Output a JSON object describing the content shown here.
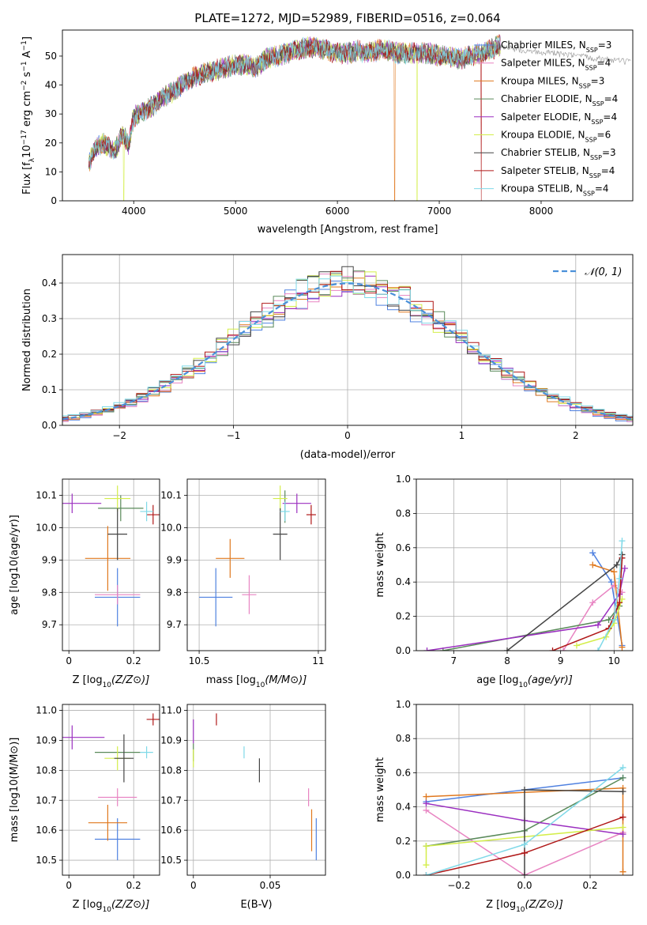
{
  "figure": {
    "title": "PLATE=1272, MJD=52989, FIBERID=0516, z=0.064"
  },
  "legend_entries": [
    {
      "label": "Chabrier MILES, N",
      "sub": "SSP",
      "suffix": "=3",
      "color": "#4f81e0"
    },
    {
      "label": "Salpeter MILES, N",
      "sub": "SSP",
      "suffix": "=4",
      "color": "#e884c2"
    },
    {
      "label": "Kroupa MILES, N",
      "sub": "SSP",
      "suffix": "=3",
      "color": "#e0781e"
    },
    {
      "label": "Chabrier ELODIE, N",
      "sub": "SSP",
      "suffix": "=4",
      "color": "#5a8a5a"
    },
    {
      "label": "Salpeter ELODIE, N",
      "sub": "SSP",
      "suffix": "=4",
      "color": "#9b2fc0"
    },
    {
      "label": "Kroupa ELODIE, N",
      "sub": "SSP",
      "suffix": "=6",
      "color": "#d4ee4a"
    },
    {
      "label": "Chabrier STELIB, N",
      "sub": "SSP",
      "suffix": "=3",
      "color": "#444444"
    },
    {
      "label": "Salpeter STELIB, N",
      "sub": "SSP",
      "suffix": "=4",
      "color": "#b01818"
    },
    {
      "label": "Kroupa STELIB, N",
      "sub": "SSP",
      "suffix": "=4",
      "color": "#7fd9e8"
    }
  ],
  "chart_data": [
    {
      "id": "spectrum",
      "type": "line",
      "xlabel": "wavelength [Angstrom, rest frame]",
      "ylabel": "Flux [f",
      "ylabel_parts": [
        "Flux [f",
        "λ",
        "10",
        "−17",
        " erg cm",
        "−2",
        " s",
        "−1",
        " A",
        "−1",
        "]"
      ],
      "xlim": [
        3300,
        8900
      ],
      "ylim": [
        0,
        59
      ],
      "xticks": [
        4000,
        5000,
        6000,
        7000,
        8000
      ],
      "yticks": [
        0,
        10,
        20,
        30,
        40,
        50
      ],
      "x": [
        3560,
        3620,
        3700,
        3800,
        3900,
        3950,
        4000,
        4050,
        4100,
        4200,
        4300,
        4400,
        4500,
        4600,
        4700,
        4800,
        4900,
        5000,
        5100,
        5200,
        5300,
        5400,
        5500,
        5600,
        5700,
        5800,
        5900,
        6000,
        6100,
        6200,
        6300,
        6400,
        6500,
        6600,
        6700,
        6800,
        6900,
        7000,
        7100,
        7200,
        7300,
        7400,
        7500,
        7600
      ],
      "values": [
        13,
        18,
        20,
        17,
        23,
        19,
        29,
        30,
        31,
        33,
        36,
        38,
        41,
        43,
        44,
        45,
        46,
        47,
        47,
        46,
        49,
        50,
        51,
        52,
        53,
        53,
        52,
        51,
        51,
        52,
        51,
        52,
        52,
        51,
        51,
        51,
        51,
        50,
        50,
        49,
        50,
        51,
        52,
        54
      ]
    },
    {
      "id": "residuals",
      "type": "bar",
      "xlabel": "(data-model)/error",
      "ylabel": "Normed distribution",
      "xlim": [
        -2.5,
        2.5
      ],
      "ylim": [
        0,
        0.48
      ],
      "xticks": [
        -2,
        -1,
        0,
        1,
        2
      ],
      "yticks": [
        0.0,
        0.1,
        0.2,
        0.3,
        0.4
      ],
      "legend": "𝒩(0, 1)",
      "bin_width": 0.1
    },
    {
      "id": "age_vs_Z",
      "type": "scatter",
      "xlabel": "Z [log",
      "xlabel_full": "Z [log10(Z/Z⊙)]",
      "ylabel": "age  [log10(age/yr)]",
      "xlim": [
        -0.02,
        0.28
      ],
      "ylim": [
        9.62,
        10.15
      ],
      "xticks": [
        0.0,
        0.2
      ],
      "yticks": [
        9.7,
        9.8,
        9.9,
        10.0,
        10.1
      ],
      "points": [
        {
          "x": 0.15,
          "y": 9.785,
          "xerr": 0.07,
          "yerr": 0.09,
          "series": 0
        },
        {
          "x": 0.15,
          "y": 9.793,
          "xerr": 0.07,
          "yerr": 0.03,
          "series": 1
        },
        {
          "x": 0.12,
          "y": 9.905,
          "xerr": 0.07,
          "yerr": 0.1,
          "series": 2
        },
        {
          "x": 0.16,
          "y": 10.06,
          "xerr": 0.07,
          "yerr": 0.04,
          "series": 3
        },
        {
          "x": 0.01,
          "y": 10.075,
          "xerr": 0.09,
          "yerr": 0.03,
          "series": 4
        },
        {
          "x": 0.15,
          "y": 10.09,
          "xerr": 0.04,
          "yerr": 0.04,
          "series": 5
        },
        {
          "x": 0.15,
          "y": 9.98,
          "xerr": 0.03,
          "yerr": 0.08,
          "series": 6
        },
        {
          "x": 0.26,
          "y": 10.04,
          "xerr": 0.02,
          "yerr": 0.03,
          "series": 7
        },
        {
          "x": 0.24,
          "y": 10.05,
          "xerr": 0.02,
          "yerr": 0.03,
          "series": 8
        }
      ]
    },
    {
      "id": "age_vs_mass",
      "type": "scatter",
      "xlabel": "mass [log10(M/M⊙)]",
      "ylabel": "",
      "xlim": [
        10.45,
        11.03
      ],
      "ylim": [
        9.62,
        10.15
      ],
      "xticks": [
        10.5,
        11.0
      ],
      "yticks": [
        9.7,
        9.8,
        9.9,
        10.0,
        10.1
      ],
      "points": [
        {
          "x": 10.57,
          "y": 9.785,
          "xerr": 0.07,
          "yerr": 0.09,
          "series": 0
        },
        {
          "x": 10.71,
          "y": 9.793,
          "xerr": 0.03,
          "yerr": 0.06,
          "series": 1
        },
        {
          "x": 10.63,
          "y": 9.905,
          "xerr": 0.06,
          "yerr": 0.06,
          "series": 2
        },
        {
          "x": 10.86,
          "y": 10.065,
          "xerr": 0.0,
          "yerr": 0.05,
          "series": 3
        },
        {
          "x": 10.91,
          "y": 10.075,
          "xerr": 0.06,
          "yerr": 0.03,
          "series": 4
        },
        {
          "x": 10.84,
          "y": 10.09,
          "xerr": 0.03,
          "yerr": 0.04,
          "series": 5
        },
        {
          "x": 10.84,
          "y": 9.98,
          "xerr": 0.03,
          "yerr": 0.08,
          "series": 6
        },
        {
          "x": 10.97,
          "y": 10.04,
          "xerr": 0.02,
          "yerr": 0.03,
          "series": 7
        },
        {
          "x": 10.86,
          "y": 10.05,
          "xerr": 0.02,
          "yerr": 0.03,
          "series": 8
        }
      ]
    },
    {
      "id": "mass_weight_vs_age",
      "type": "line",
      "xlabel": "age  [log10(age/yr)]",
      "ylabel": "mass weight",
      "xlim": [
        6.3,
        10.35
      ],
      "ylim": [
        0,
        1.0
      ],
      "xticks": [
        7,
        8,
        9,
        10
      ],
      "yticks": [
        0.0,
        0.2,
        0.4,
        0.6,
        0.8,
        1.0
      ],
      "series": [
        {
          "name": "",
          "x": [
            9.6,
            9.95,
            10.15
          ],
          "y": [
            0.57,
            0.4,
            0.03
          ],
          "color": "#4f81e0"
        },
        {
          "name": "",
          "x": [
            9.05,
            9.6,
            10.0,
            10.15
          ],
          "y": [
            0.0,
            0.28,
            0.38,
            0.34
          ],
          "color": "#e884c2"
        },
        {
          "name": "",
          "x": [
            9.6,
            10.0,
            10.15
          ],
          "y": [
            0.5,
            0.46,
            0.02
          ],
          "color": "#e0781e"
        },
        {
          "name": "",
          "x": [
            6.8,
            9.9,
            10.1,
            10.15
          ],
          "y": [
            0.0,
            0.18,
            0.26,
            0.56
          ],
          "color": "#5a8a5a"
        },
        {
          "name": "",
          "x": [
            6.5,
            9.7,
            10.1,
            10.2
          ],
          "y": [
            0.0,
            0.15,
            0.33,
            0.48
          ],
          "color": "#9b2fc0"
        },
        {
          "name": "",
          "x": [
            9.3,
            9.85,
            10.0,
            10.15
          ],
          "y": [
            0.03,
            0.08,
            0.16,
            0.3
          ],
          "color": "#d4ee4a"
        },
        {
          "name": "",
          "x": [
            8.0,
            10.05,
            10.15
          ],
          "y": [
            0.0,
            0.5,
            0.56
          ],
          "color": "#444444"
        },
        {
          "name": "",
          "x": [
            8.85,
            9.9,
            10.1,
            10.15
          ],
          "y": [
            0.0,
            0.13,
            0.28,
            0.54
          ],
          "color": "#b01818"
        },
        {
          "name": "",
          "x": [
            9.7,
            10.0,
            10.1,
            10.15
          ],
          "y": [
            0.0,
            0.18,
            0.42,
            0.64
          ],
          "color": "#7fd9e8"
        }
      ]
    },
    {
      "id": "mass_vs_Z",
      "type": "scatter",
      "xlabel": "Z [log10(Z/Z⊙)]",
      "ylabel": "mass [log10(M/M⊙)]",
      "xlim": [
        -0.02,
        0.28
      ],
      "ylim": [
        10.45,
        11.02
      ],
      "xticks": [
        0.0,
        0.2
      ],
      "yticks": [
        10.5,
        10.6,
        10.7,
        10.8,
        10.9,
        11.0
      ],
      "points": [
        {
          "x": 0.15,
          "y": 10.57,
          "xerr": 0.07,
          "yerr": 0.07,
          "series": 0
        },
        {
          "x": 0.15,
          "y": 10.71,
          "xerr": 0.06,
          "yerr": 0.03,
          "series": 1
        },
        {
          "x": 0.12,
          "y": 10.625,
          "xerr": 0.06,
          "yerr": 0.06,
          "series": 2
        },
        {
          "x": 0.15,
          "y": 10.86,
          "xerr": 0.07,
          "yerr": 0.0,
          "series": 3
        },
        {
          "x": 0.01,
          "y": 10.91,
          "xerr": 0.1,
          "yerr": 0.04,
          "series": 4
        },
        {
          "x": 0.15,
          "y": 10.84,
          "xerr": 0.04,
          "yerr": 0.04,
          "series": 5
        },
        {
          "x": 0.17,
          "y": 10.84,
          "xerr": 0.03,
          "yerr": 0.08,
          "series": 6
        },
        {
          "x": 0.26,
          "y": 10.97,
          "xerr": 0.02,
          "yerr": 0.02,
          "series": 7
        },
        {
          "x": 0.24,
          "y": 10.86,
          "xerr": 0.02,
          "yerr": 0.02,
          "series": 8
        }
      ]
    },
    {
      "id": "mass_vs_EBV",
      "type": "scatter",
      "xlabel": "E(B-V)",
      "ylabel": "",
      "xlim": [
        -0.004,
        0.086
      ],
      "ylim": [
        10.45,
        11.02
      ],
      "xticks": [
        0.0,
        0.05
      ],
      "yticks": [
        10.5,
        10.6,
        10.7,
        10.8,
        10.9,
        11.0
      ],
      "points": [
        {
          "x": 0.08,
          "y": 10.57,
          "xerr": 0,
          "yerr": 0.07,
          "series": 0
        },
        {
          "x": 0.075,
          "y": 10.71,
          "xerr": 0,
          "yerr": 0.03,
          "series": 1
        },
        {
          "x": 0.077,
          "y": 10.6,
          "xerr": 0,
          "yerr": 0.07,
          "series": 2
        },
        {
          "x": 0.0,
          "y": 10.86,
          "xerr": 0,
          "yerr": 0.03,
          "series": 3
        },
        {
          "x": 0.0,
          "y": 10.93,
          "xerr": 0,
          "yerr": 0.04,
          "series": 4
        },
        {
          "x": 0.0,
          "y": 10.84,
          "xerr": 0,
          "yerr": 0.03,
          "series": 5
        },
        {
          "x": 0.043,
          "y": 10.8,
          "xerr": 0,
          "yerr": 0.04,
          "series": 6
        },
        {
          "x": 0.015,
          "y": 10.97,
          "xerr": 0,
          "yerr": 0.02,
          "series": 7
        },
        {
          "x": 0.033,
          "y": 10.86,
          "xerr": 0,
          "yerr": 0.02,
          "series": 8
        }
      ]
    },
    {
      "id": "mass_weight_vs_Z",
      "type": "line",
      "xlabel": "Z [log10(Z/Z⊙)]",
      "ylabel": "mass weight",
      "xlim": [
        -0.33,
        0.33
      ],
      "ylim": [
        0,
        1.0
      ],
      "xticks": [
        -0.2,
        0.0,
        0.2
      ],
      "yticks": [
        0.0,
        0.2,
        0.4,
        0.6,
        0.8,
        1.0
      ],
      "series": [
        {
          "name": "",
          "x": [
            -0.3,
            0.3
          ],
          "y": [
            0.43,
            0.57
          ],
          "color": "#4f81e0"
        },
        {
          "name": "",
          "x": [
            -0.3,
            0.0,
            0.3
          ],
          "y": [
            0.38,
            0.0,
            0.25
          ],
          "color": "#e884c2"
        },
        {
          "name": "",
          "x": [
            -0.3,
            0.3,
            0.3
          ],
          "y": [
            0.46,
            0.51,
            0.02
          ],
          "color": "#e0781e"
        },
        {
          "name": "",
          "x": [
            -0.3,
            0.0,
            0.3
          ],
          "y": [
            0.17,
            0.26,
            0.57
          ],
          "color": "#5a8a5a"
        },
        {
          "name": "",
          "x": [
            -0.3,
            0.0,
            0.3
          ],
          "y": [
            0.42,
            0.32,
            0.24
          ],
          "color": "#9b2fc0"
        },
        {
          "name": "",
          "x": [
            -0.3,
            -0.3,
            0.3
          ],
          "y": [
            0.06,
            0.17,
            0.28
          ],
          "color": "#d4ee4a"
        },
        {
          "name": "",
          "x": [
            0.0,
            0.0,
            0.3
          ],
          "y": [
            0.0,
            0.5,
            0.49
          ],
          "color": "#444444"
        },
        {
          "name": "",
          "x": [
            -0.3,
            0.0,
            0.3
          ],
          "y": [
            0.0,
            0.13,
            0.34
          ],
          "color": "#b01818"
        },
        {
          "name": "",
          "x": [
            -0.3,
            0.0,
            0.3
          ],
          "y": [
            0.0,
            0.18,
            0.63
          ],
          "color": "#7fd9e8"
        }
      ]
    }
  ]
}
